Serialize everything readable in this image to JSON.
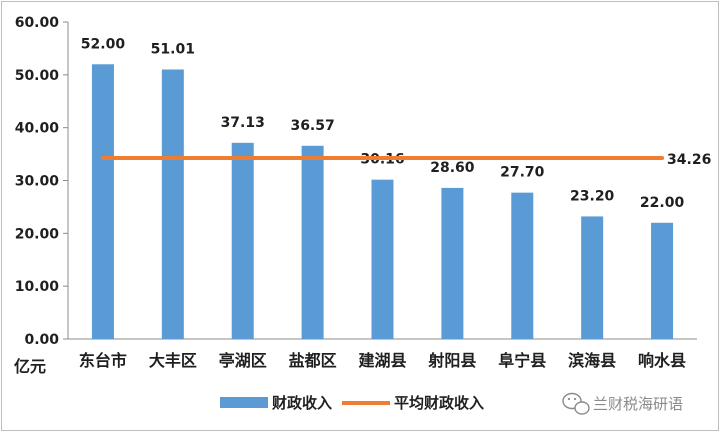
{
  "chart_data": {
    "type": "bar",
    "categories": [
      "东台市",
      "大丰区",
      "亭湖区",
      "盐都区",
      "建湖县",
      "射阳县",
      "阜宁县",
      "滨海县",
      "响水县"
    ],
    "series": [
      {
        "name": "财政收入",
        "type": "bar",
        "values": [
          52.0,
          51.01,
          37.13,
          36.57,
          30.16,
          28.6,
          27.7,
          23.2,
          22.0
        ],
        "labels": [
          "52.00",
          "51.01",
          "37.13",
          "36.57",
          "30.16",
          "28.60",
          "27.70",
          "23.20",
          "22.00"
        ],
        "color": "#5b9bd5"
      },
      {
        "name": "平均财政收入",
        "type": "line",
        "value": 34.26,
        "label": "34.26",
        "color": "#ed7d31"
      }
    ],
    "ylim": [
      0,
      60
    ],
    "yticks": [
      "0.00",
      "10.00",
      "20.00",
      "30.00",
      "40.00",
      "50.00",
      "60.00"
    ],
    "ylabel": "亿元",
    "grid": false,
    "legend_position": "bottom"
  },
  "watermark": {
    "text": "兰财税海研语",
    "icon": "wechat-icon"
  }
}
